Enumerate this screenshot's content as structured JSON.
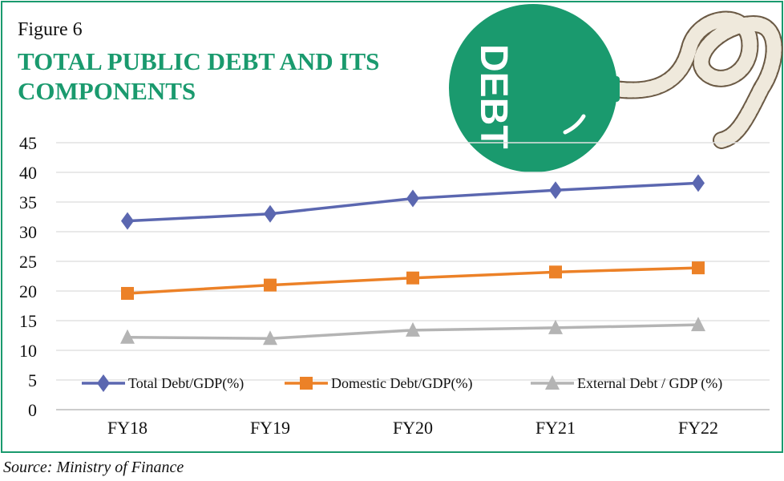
{
  "figure_label": "Figure 6",
  "title": "TOTAL PUBLIC DEBT AND ITS COMPONENTS",
  "source": "Source: Ministry of Finance",
  "illustration_text": "DEBT",
  "chart_data": {
    "type": "line",
    "categories": [
      "FY18",
      "FY19",
      "FY20",
      "FY21",
      "FY22"
    ],
    "ylim": [
      0,
      45
    ],
    "yticks": [
      0,
      5,
      10,
      15,
      20,
      25,
      30,
      35,
      40,
      45
    ],
    "grid": true,
    "legend_placement": "bottom-inside",
    "series": [
      {
        "name": "Total Debt/GDP(%)",
        "color": "#5b67b0",
        "marker": "diamond",
        "values": [
          31.8,
          33.0,
          35.6,
          37.0,
          38.2
        ]
      },
      {
        "name": "Domestic Debt/GDP(%)",
        "color": "#ec8127",
        "marker": "square",
        "values": [
          19.6,
          21.0,
          22.2,
          23.2,
          23.9
        ]
      },
      {
        "name": "External Debt / GDP (%)",
        "color": "#b4b4b4",
        "marker": "triangle",
        "values": [
          12.2,
          12.0,
          13.4,
          13.8,
          14.3
        ]
      }
    ]
  }
}
